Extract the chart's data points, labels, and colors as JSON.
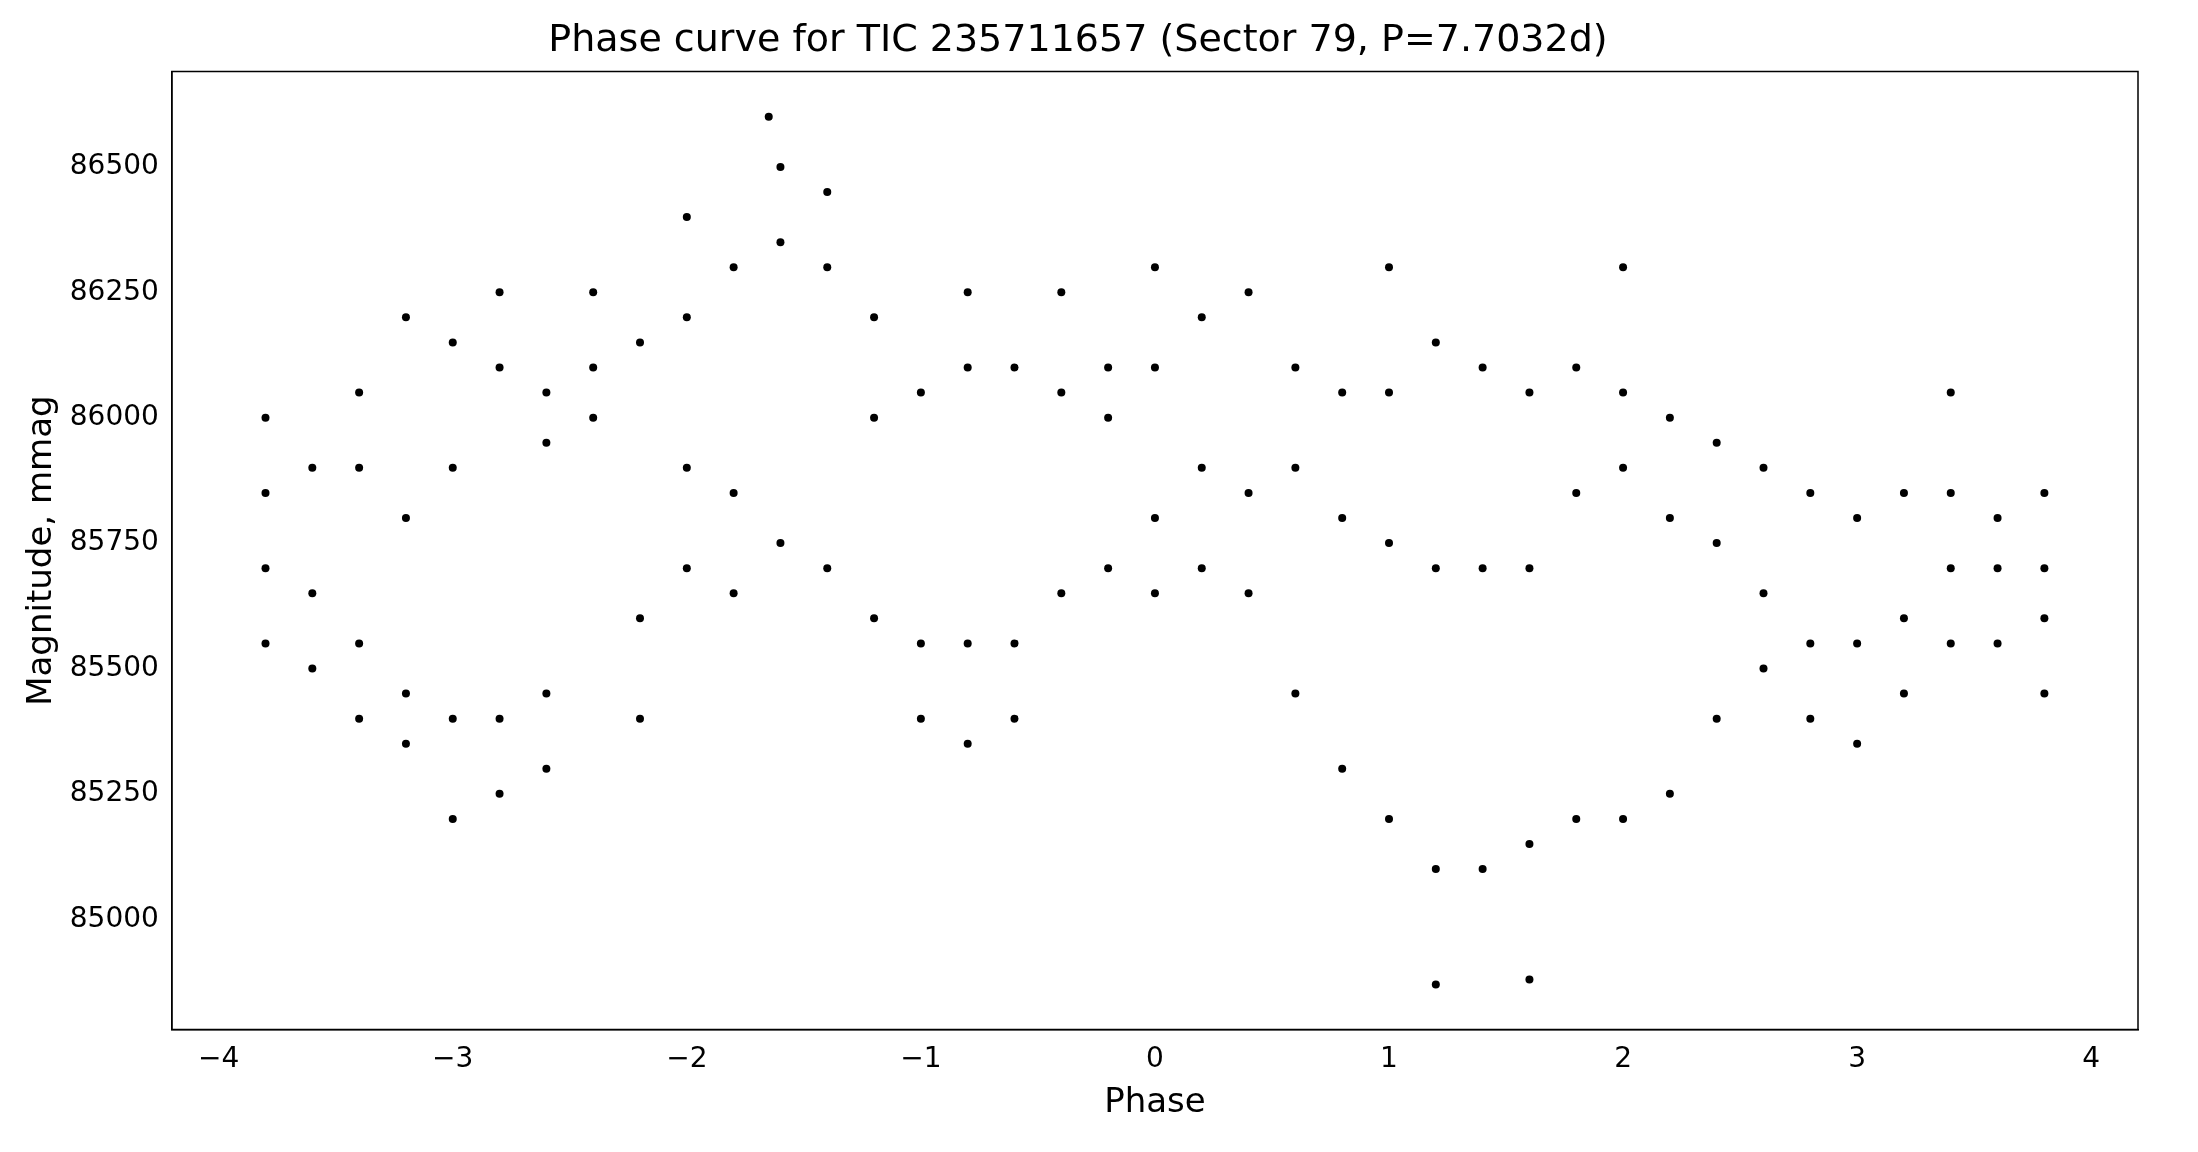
{
  "chart_data": {
    "type": "scatter",
    "title": "Phase curve for TIC 235711657 (Sector 79, P=7.7032d)",
    "xlabel": "Phase",
    "ylabel": "Magnitude, mmag",
    "marker": "circle",
    "grid": false,
    "xlim": [
      -4.2,
      4.2
    ],
    "ylim": [
      84780,
      86690
    ],
    "xticks": [
      {
        "value": -4,
        "label": "−4"
      },
      {
        "value": -3,
        "label": "−3"
      },
      {
        "value": -2,
        "label": "−2"
      },
      {
        "value": -1,
        "label": "−1"
      },
      0,
      1,
      2,
      3,
      4
    ],
    "yticks": [
      85000,
      85250,
      85500,
      85750,
      86000,
      86250,
      86500
    ],
    "series": [
      {
        "color": "#000000",
        "x": [
          -3.8,
          -3.8,
          -3.8,
          -3.8,
          -3.6,
          -3.6,
          -3.6,
          -3.4,
          -3.4,
          -3.4,
          -3.4,
          -3.2,
          -3.2,
          -3.2,
          -3.2,
          -3.0,
          -3.0,
          -3.0,
          -3.0,
          -2.8,
          -2.8,
          -2.8,
          -2.8,
          -2.6,
          -2.6,
          -2.6,
          -2.6,
          -2.4,
          -2.4,
          -2.4,
          -2.2,
          -2.2,
          -2.2,
          -2.0,
          -2.0,
          -2.0,
          -2.0,
          -1.8,
          -1.8,
          -1.8,
          -1.65,
          -1.6,
          -1.6,
          -1.6,
          -1.4,
          -1.4,
          -1.4,
          -1.2,
          -1.2,
          -1.2,
          -1.0,
          -1.0,
          -1.0,
          -0.8,
          -0.8,
          -0.8,
          -0.8,
          -0.6,
          -0.6,
          -0.6,
          -0.4,
          -0.4,
          -0.4,
          -0.2,
          -0.2,
          -0.2,
          0,
          0,
          0,
          0,
          0.2,
          0.2,
          0.2,
          0.4,
          0.4,
          0.4,
          0.6,
          0.6,
          0.6,
          0.8,
          0.8,
          0.8,
          1.0,
          1.0,
          1.0,
          1.0,
          1.2,
          1.2,
          1.2,
          1.2,
          1.4,
          1.4,
          1.4,
          1.6,
          1.6,
          1.6,
          1.6,
          1.8,
          1.8,
          1.8,
          2.0,
          2.0,
          2.0,
          2.0,
          2.2,
          2.2,
          2.2,
          2.4,
          2.4,
          2.4,
          2.6,
          2.6,
          2.6,
          2.8,
          2.8,
          2.8,
          3.0,
          3.0,
          3.0,
          3.2,
          3.2,
          3.2,
          3.4,
          3.4,
          3.4,
          3.4,
          3.6,
          3.6,
          3.6,
          3.8,
          3.8,
          3.8,
          3.8
        ],
        "values": [
          85700,
          85850,
          85550,
          86000,
          85650,
          85900,
          85500,
          85550,
          85900,
          86050,
          85400,
          85450,
          86200,
          85800,
          85350,
          85400,
          86150,
          85900,
          85200,
          85400,
          86100,
          86250,
          85250,
          85450,
          86050,
          85950,
          85300,
          86100,
          86000,
          86250,
          85600,
          86150,
          85400,
          85900,
          86200,
          85700,
          86400,
          85850,
          86300,
          85650,
          86600,
          85750,
          86350,
          86500,
          85700,
          86300,
          86450,
          85600,
          86200,
          86000,
          85550,
          86050,
          85400,
          85550,
          86100,
          85350,
          86250,
          85550,
          86100,
          85400,
          85650,
          86050,
          86250,
          85700,
          86000,
          86100,
          85800,
          86100,
          85650,
          86300,
          85700,
          86200,
          85900,
          85650,
          86250,
          85850,
          85450,
          85900,
          86100,
          85300,
          85800,
          86050,
          85200,
          85750,
          86050,
          86300,
          85100,
          85700,
          86150,
          84870,
          85100,
          85700,
          86100,
          85150,
          85700,
          86050,
          84880,
          85200,
          85850,
          86100,
          85200,
          85900,
          86050,
          86300,
          85250,
          85800,
          86000,
          85400,
          85750,
          85950,
          85650,
          85900,
          85500,
          85550,
          85850,
          85400,
          85550,
          85800,
          85350,
          85600,
          85850,
          85450,
          85700,
          85850,
          85550,
          86050,
          85700,
          85800,
          85550,
          85700,
          85850,
          85600,
          85450
        ]
      }
    ]
  }
}
